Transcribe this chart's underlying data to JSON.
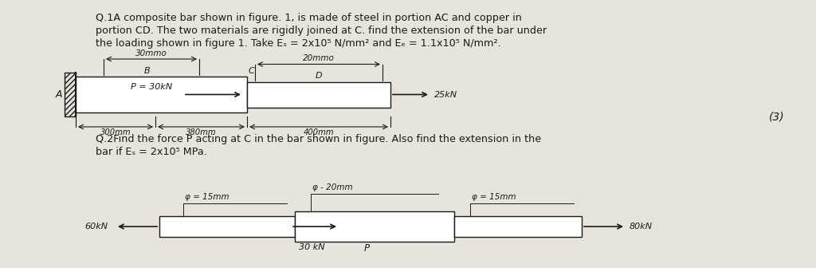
{
  "background_color": "#e8e4dc",
  "text_color": "#1a1a1a",
  "q1_text_line1": "Q.1A composite bar shown in figure. 1, is made of steel in portion AC and copper in",
  "q1_text_line2": "portion CD. The two materials are rigidly joined at C. find the extension of the bar under",
  "q1_text_line3": "the loading shown in figure 1. Take Eₛ = 2x10⁵ N/mm² and Eₑ = 1.1x10⁵ N/mm².",
  "q2_text_line1": "Q.2Find the force P acting at C in the bar shown in figure. Also find the extension in the",
  "q2_text_line2": "bar if Eₛ = 2x10⁵ MPa.",
  "mark_3": "(3)",
  "fig1": {
    "label_A": "A",
    "label_B": "B",
    "label_C": "C",
    "label_D": "D",
    "dim_30mm": "30mmo",
    "dim_20mm": "20mmo",
    "force_P": "P = 30kN",
    "force_25": "25kN",
    "dim_300": "300mm",
    "dim_380": "380mm",
    "dim_400": "400mm"
  },
  "fig2": {
    "dim_15mm_1": "φ = 15mm",
    "dim_20mm": "φ - 20mm",
    "dim_15mm_2": "φ = 15mm",
    "force_60": "60kN",
    "force_30": "30 kN",
    "label_P": "P",
    "force_80": "80kN"
  }
}
